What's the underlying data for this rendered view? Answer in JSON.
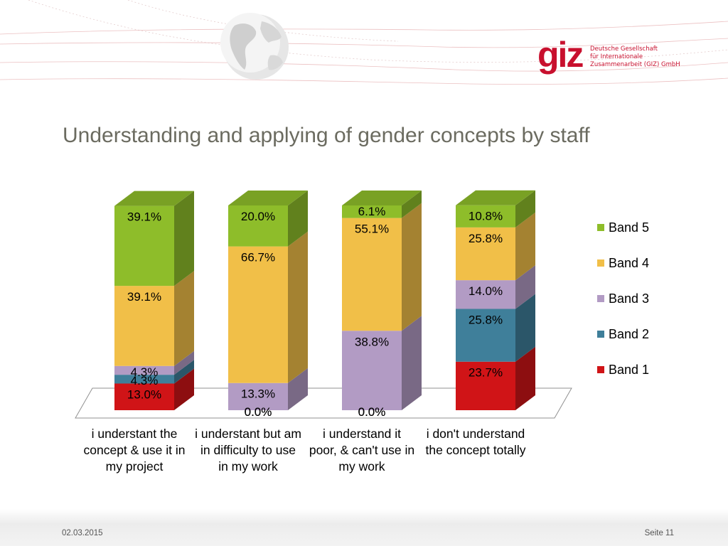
{
  "title": "Understanding and applying of gender concepts by staff",
  "logo": {
    "mark": "giz",
    "org_lines": [
      "Deutsche Gesellschaft",
      "für Internationale",
      "Zusammenarbeit (GIZ) GmbH"
    ]
  },
  "footer": {
    "date": "02.03.2015",
    "page": "Seite 11"
  },
  "chart_data": {
    "type": "bar",
    "stacked": true,
    "categories": [
      "i understant the concept & use it in my project",
      "i understant but am in difficulty to use in my work",
      "i understand it poor, & can't use in my work",
      "i don't understand the concept totally"
    ],
    "series": [
      {
        "name": "Band 1",
        "color": "#d01417",
        "values": [
          13.0,
          0.0,
          0.0,
          23.7
        ]
      },
      {
        "name": "Band 2",
        "color": "#3f7f9a",
        "values": [
          4.3,
          0.0,
          0.0,
          25.8
        ]
      },
      {
        "name": "Band 3",
        "color": "#b29bc4",
        "values": [
          4.3,
          13.3,
          38.8,
          14.0
        ]
      },
      {
        "name": "Band 4",
        "color": "#f1bf48",
        "values": [
          39.1,
          66.7,
          55.1,
          25.8
        ]
      },
      {
        "name": "Band 5",
        "color": "#8ebd2a",
        "values": [
          39.1,
          20.0,
          6.1,
          10.8
        ]
      }
    ],
    "data_labels": [
      [
        "13.0%",
        "4.3%",
        "4.3%",
        "39.1%",
        "39.1%"
      ],
      [
        "0.0%",
        "0.0%",
        "13.3%",
        "66.7%",
        "20.0%"
      ],
      [
        "0.0%",
        "0.0%",
        "38.8%",
        "55.1%",
        "6.1%"
      ],
      [
        "23.7%",
        "25.8%",
        "14.0%",
        "25.8%",
        "10.8%"
      ]
    ],
    "legend_position": "right",
    "legend_order": [
      "Band 5",
      "Band 4",
      "Band 3",
      "Band 2",
      "Band 1"
    ],
    "ylim": [
      0,
      100
    ],
    "grid": false
  }
}
